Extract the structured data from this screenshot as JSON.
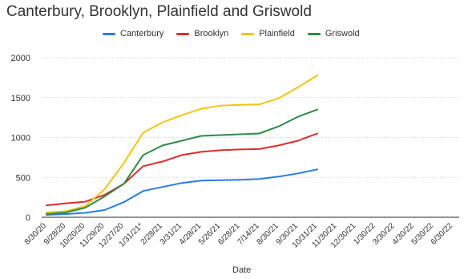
{
  "chart_data": {
    "type": "line",
    "title": "Canterbury, Brooklyn, Plainfield and Griswold",
    "xlabel": "Date",
    "ylabel": "",
    "ylim": [
      0,
      2000
    ],
    "yticks": [
      0,
      500,
      1000,
      1500,
      2000
    ],
    "grid": true,
    "legend_position": "top",
    "categories": [
      "8/30/20",
      "9/28/20",
      "10/20/20",
      "11/29/20",
      "12/27/20",
      "1/31/21*",
      "2/28/21",
      "3/31/21",
      "4/28/21",
      "5/26/21",
      "6/28/21",
      "7/14/21",
      "8/30/21",
      "9/30/21",
      "10/31/21",
      "11/30/21",
      "12/30/21",
      "1/30/22",
      "3/30/22",
      "4/30/22",
      "5/30/22",
      "6/30/22"
    ],
    "series": [
      {
        "name": "Canterbury",
        "color": "#2a7be4",
        "values": [
          30,
          40,
          55,
          90,
          190,
          330,
          380,
          430,
          460,
          465,
          470,
          480,
          510,
          550,
          600,
          null,
          null,
          null,
          null,
          null,
          null,
          null
        ]
      },
      {
        "name": "Brooklyn",
        "color": "#e02b2b",
        "values": [
          150,
          175,
          195,
          280,
          420,
          640,
          700,
          780,
          820,
          840,
          850,
          855,
          900,
          960,
          1050,
          null,
          null,
          null,
          null,
          null,
          null,
          null
        ]
      },
      {
        "name": "Plainfield",
        "color": "#f2c511",
        "values": [
          60,
          75,
          140,
          350,
          680,
          1060,
          1190,
          1280,
          1360,
          1400,
          1410,
          1415,
          1490,
          1630,
          1780,
          null,
          null,
          null,
          null,
          null,
          null,
          null
        ]
      },
      {
        "name": "Griswold",
        "color": "#2e8b45",
        "values": [
          40,
          60,
          120,
          260,
          420,
          780,
          900,
          960,
          1020,
          1030,
          1040,
          1050,
          1140,
          1260,
          1350,
          null,
          null,
          null,
          null,
          null,
          null,
          null
        ]
      }
    ]
  }
}
